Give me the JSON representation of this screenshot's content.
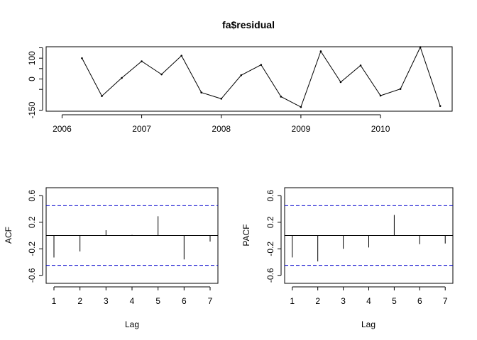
{
  "chart_data": [
    {
      "type": "line",
      "title": "fa$residual",
      "xlabel": "",
      "ylabel": "",
      "xlim": [
        2005.8,
        2010.9
      ],
      "ylim": [
        -155,
        155
      ],
      "x_ticks": [
        2006,
        2007,
        2008,
        2009,
        2010
      ],
      "y_ticks": [
        -150,
        -50,
        0,
        50,
        100,
        150
      ],
      "y_tick_labels": [
        "-150",
        "0",
        "100"
      ],
      "y_tick_label_values": [
        -150,
        0,
        100
      ],
      "grid": false,
      "x": [
        2006.25,
        2006.5,
        2006.75,
        2007.0,
        2007.25,
        2007.5,
        2007.75,
        2008.0,
        2008.25,
        2008.5,
        2008.75,
        2009.0,
        2009.25,
        2009.5,
        2009.75,
        2010.0,
        2010.25,
        2010.5,
        2010.75
      ],
      "values": [
        100,
        -82,
        5,
        85,
        22,
        112,
        -65,
        -95,
        18,
        68,
        -85,
        -135,
        133,
        -15,
        65,
        -80,
        -48,
        153,
        -130
      ]
    },
    {
      "type": "bar",
      "title": "",
      "xlabel": "Lag",
      "ylabel": "ACF",
      "xlim": [
        0.7,
        7.3
      ],
      "ylim": [
        -0.72,
        0.72
      ],
      "x_ticks": [
        1,
        2,
        3,
        4,
        5,
        6,
        7
      ],
      "y_ticks": [
        -0.6,
        -0.2,
        0.2,
        0.6
      ],
      "grid": false,
      "ci": [
        0.449,
        -0.449
      ],
      "lags": [
        1,
        2,
        3,
        4,
        5,
        6,
        7
      ],
      "values": [
        -0.33,
        -0.24,
        0.08,
        0.01,
        0.29,
        -0.36,
        -0.09
      ]
    },
    {
      "type": "bar",
      "title": "",
      "xlabel": "Lag",
      "ylabel": "PACF",
      "xlim": [
        0.7,
        7.3
      ],
      "ylim": [
        -0.72,
        0.72
      ],
      "x_ticks": [
        1,
        2,
        3,
        4,
        5,
        6,
        7
      ],
      "y_ticks": [
        -0.6,
        -0.2,
        0.2,
        0.6
      ],
      "grid": false,
      "ci": [
        0.449,
        -0.449
      ],
      "lags": [
        1,
        2,
        3,
        4,
        5,
        6,
        7
      ],
      "values": [
        -0.33,
        -0.39,
        -0.2,
        -0.18,
        0.31,
        -0.13,
        -0.12
      ]
    }
  ]
}
